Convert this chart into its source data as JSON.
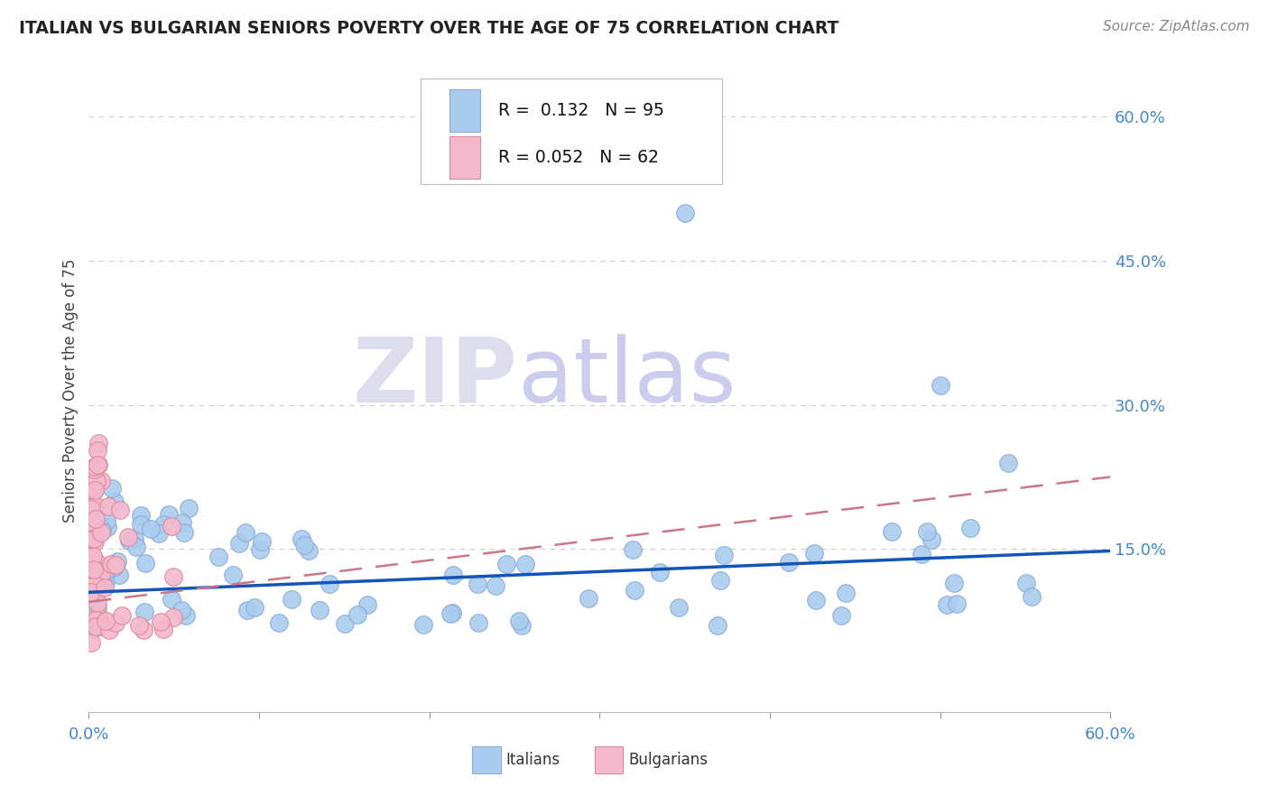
{
  "title": "ITALIAN VS BULGARIAN SENIORS POVERTY OVER THE AGE OF 75 CORRELATION CHART",
  "source": "Source: ZipAtlas.com",
  "ylabel": "Seniors Poverty Over the Age of 75",
  "xlim": [
    0.0,
    0.6
  ],
  "ylim": [
    -0.02,
    0.65
  ],
  "ytick_labels_right": [
    "60.0%",
    "45.0%",
    "30.0%",
    "15.0%"
  ],
  "ytick_vals_right": [
    0.6,
    0.45,
    0.3,
    0.15
  ],
  "grid_color": "#cccccc",
  "background_color": "#ffffff",
  "italian_color": "#aaccee",
  "bulgarian_color": "#f4b8cc",
  "italian_edge_color": "#88aadd",
  "bulgarian_edge_color": "#dd8899",
  "trend_italian_color": "#1155bb",
  "trend_bulgarian_color": "#cc7788",
  "R_italian": 0.132,
  "N_italian": 95,
  "R_bulgarian": 0.052,
  "N_bulgarian": 62,
  "watermark_zip": "ZIP",
  "watermark_atlas": "atlas",
  "legend_italian": "Italians",
  "legend_bulgarian": "Bulgarians",
  "it_trend_x0": 0.0,
  "it_trend_y0": 0.105,
  "it_trend_x1": 0.6,
  "it_trend_y1": 0.148,
  "bg_trend_x0": 0.0,
  "bg_trend_y0": 0.095,
  "bg_trend_x1": 0.6,
  "bg_trend_y1": 0.225
}
